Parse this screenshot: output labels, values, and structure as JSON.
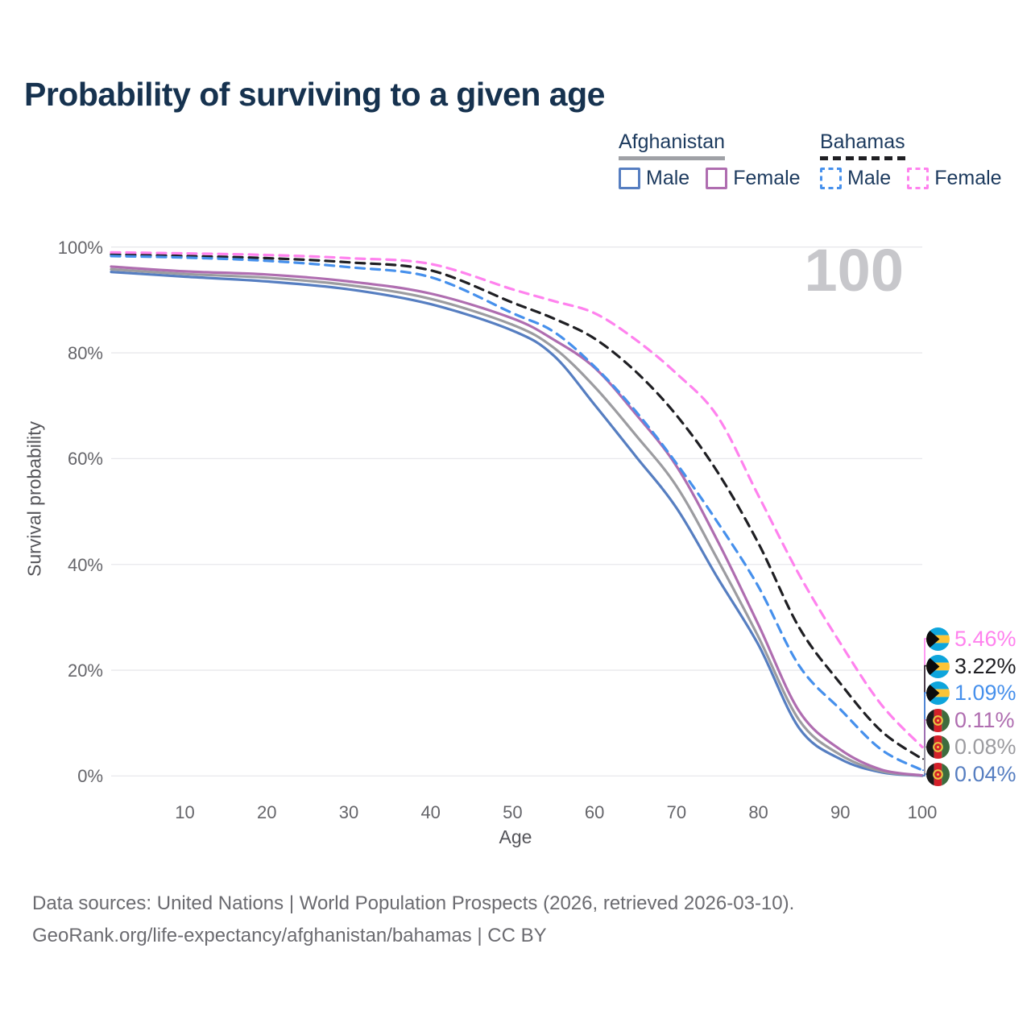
{
  "title": "Probability of surviving to a given age",
  "watermark_age": "100",
  "legend": {
    "groups": [
      {
        "name": "Afghanistan",
        "underline_style": "solid",
        "underline_color": "#9FA1A6",
        "items": [
          {
            "label": "Male",
            "series": "Afghanistan Male"
          },
          {
            "label": "Female",
            "series": "Afghanistan Female"
          }
        ]
      },
      {
        "name": "Bahamas",
        "underline_style": "dashed",
        "underline_color": "#1F1F23",
        "items": [
          {
            "label": "Male",
            "series": "Bahamas Male"
          },
          {
            "label": "Female",
            "series": "Bahamas Female"
          }
        ]
      }
    ]
  },
  "chart_data": {
    "type": "line",
    "title": "Probability of surviving to a given age",
    "xlabel": "Age",
    "ylabel": "Survival probability",
    "xlim": [
      1,
      100
    ],
    "ylim": [
      0,
      100
    ],
    "grid": "horizontal",
    "x_ticks": [
      10,
      20,
      30,
      40,
      50,
      60,
      70,
      80,
      90,
      100
    ],
    "y_ticks": [
      {
        "value": 0,
        "label": "0%"
      },
      {
        "value": 20,
        "label": "20%"
      },
      {
        "value": 40,
        "label": "40%"
      },
      {
        "value": 60,
        "label": "60%"
      },
      {
        "value": 80,
        "label": "80%"
      },
      {
        "value": 100,
        "label": "100%"
      }
    ],
    "x": [
      1,
      10,
      20,
      30,
      40,
      50,
      55,
      60,
      65,
      70,
      75,
      80,
      85,
      90,
      95,
      100
    ],
    "series": [
      {
        "name": "Afghanistan Male",
        "country": "Afghanistan",
        "sex": "Male",
        "color": "#567EC1",
        "dash": "solid",
        "values": [
          95.3,
          94.4,
          93.5,
          92.0,
          89.2,
          84.2,
          79.5,
          70.2,
          60.5,
          50.7,
          37.5,
          24.8,
          9.0,
          3.2,
          0.7,
          0.04
        ]
      },
      {
        "name": "Afghanistan Both sexes",
        "country": "Afghanistan",
        "sex": "Both",
        "color": "#9C9CA0",
        "dash": "solid",
        "values": [
          95.8,
          94.9,
          94.2,
          92.8,
          90.2,
          85.3,
          81.0,
          73.6,
          64.5,
          54.8,
          41.0,
          26.3,
          10.5,
          4.0,
          0.9,
          0.08
        ]
      },
      {
        "name": "Afghanistan Female",
        "country": "Afghanistan",
        "sex": "Female",
        "color": "#AF6DB0",
        "dash": "solid",
        "values": [
          96.3,
          95.4,
          94.8,
          93.5,
          91.2,
          86.5,
          82.5,
          77.2,
          68.5,
          58.6,
          44.5,
          28.6,
          12.2,
          5.0,
          1.2,
          0.11
        ]
      },
      {
        "name": "Bahamas Both sexes",
        "country": "Bahamas",
        "sex": "Both",
        "color": "#1F1F23",
        "dash": "dashed",
        "values": [
          98.6,
          98.3,
          97.9,
          97.1,
          95.6,
          89.5,
          86.5,
          82.7,
          76.5,
          68.2,
          57.5,
          44.0,
          28.0,
          17.5,
          8.5,
          3.22
        ]
      },
      {
        "name": "Bahamas Male",
        "country": "Bahamas",
        "sex": "Male",
        "color": "#4690EC",
        "dash": "dashed",
        "values": [
          98.3,
          98.0,
          97.4,
          96.2,
          94.3,
          87.5,
          84.0,
          77.4,
          69.0,
          59.1,
          48.0,
          35.8,
          20.8,
          12.6,
          5.0,
          1.09
        ]
      },
      {
        "name": "Bahamas Female",
        "country": "Bahamas",
        "sex": "Female",
        "color": "#FF82EE",
        "dash": "dashed",
        "values": [
          99.0,
          98.8,
          98.5,
          97.9,
          96.8,
          92.0,
          89.8,
          87.5,
          82.5,
          76.1,
          68.0,
          53.0,
          38.0,
          25.1,
          13.5,
          5.46
        ]
      }
    ],
    "end_labels": [
      {
        "series": "Bahamas Female",
        "text": "5.46%",
        "flag": "bahamas"
      },
      {
        "series": "Bahamas Both sexes",
        "text": "3.22%",
        "flag": "bahamas"
      },
      {
        "series": "Bahamas Male",
        "text": "1.09%",
        "flag": "bahamas"
      },
      {
        "series": "Afghanistan Female",
        "text": "0.11%",
        "flag": "afghanistan"
      },
      {
        "series": "Afghanistan Both sexes",
        "text": "0.08%",
        "flag": "afghanistan"
      },
      {
        "series": "Afghanistan Male",
        "text": "0.04%",
        "flag": "afghanistan"
      }
    ],
    "legend_position": "top-right"
  },
  "footer": {
    "line1": "Data sources: United Nations | World Population Prospects (2026, retrieved 2026-03-10).",
    "line2": "GeoRank.org/life-expectancy/afghanistan/bahamas | CC BY"
  }
}
